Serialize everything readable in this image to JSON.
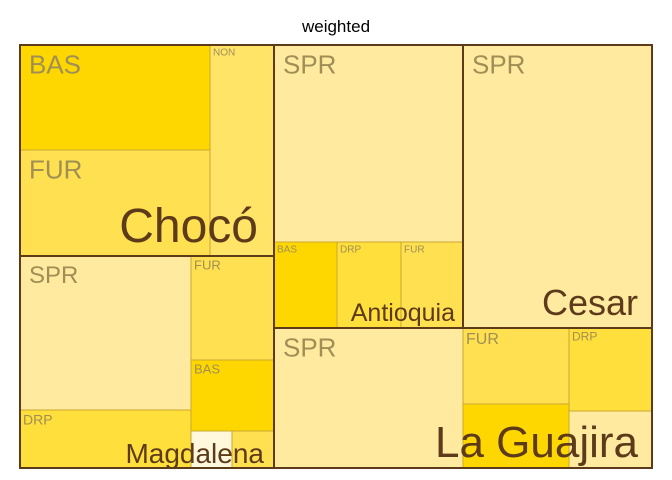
{
  "chart_data": {
    "type": "treemap",
    "title": "weighted",
    "colors": {
      "SPR": "#FFEAA0",
      "FUR": "#FFE050",
      "BAS": "#FFD700",
      "DRP": "#FFDF3C",
      "NON": "#FFE468",
      "blank": "#FFF8DC",
      "cell_border": "#C8A830",
      "group_border": "#5C3A1A",
      "cell_label": "#A08F55",
      "group_label": "#5C3A1A"
    },
    "groups": [
      {
        "name": "Chocó",
        "cells": [
          {
            "label": "BAS",
            "color_key": "BAS"
          },
          {
            "label": "FUR",
            "color_key": "FUR"
          },
          {
            "label": "NON",
            "color_key": "NON"
          }
        ]
      },
      {
        "name": "Magdalena",
        "cells": [
          {
            "label": "SPR",
            "color_key": "SPR"
          },
          {
            "label": "DRP",
            "color_key": "DRP"
          },
          {
            "label": "FUR",
            "color_key": "FUR"
          },
          {
            "label": "BAS",
            "color_key": "BAS"
          },
          {
            "label": "",
            "color_key": "blank"
          },
          {
            "label": "",
            "color_key": "FUR"
          }
        ]
      },
      {
        "name": "Antioquia",
        "cells": [
          {
            "label": "SPR",
            "color_key": "SPR"
          },
          {
            "label": "BAS",
            "color_key": "BAS"
          },
          {
            "label": "DRP",
            "color_key": "DRP"
          },
          {
            "label": "FUR",
            "color_key": "FUR"
          }
        ]
      },
      {
        "name": "Cesar",
        "cells": [
          {
            "label": "SPR",
            "color_key": "SPR"
          }
        ]
      },
      {
        "name": "La Guajira",
        "cells": [
          {
            "label": "SPR",
            "color_key": "SPR"
          },
          {
            "label": "FUR",
            "color_key": "FUR"
          },
          {
            "label": "DRP",
            "color_key": "DRP"
          },
          {
            "label": "",
            "color_key": "BAS"
          },
          {
            "label": "",
            "color_key": "SPR"
          }
        ]
      }
    ]
  }
}
